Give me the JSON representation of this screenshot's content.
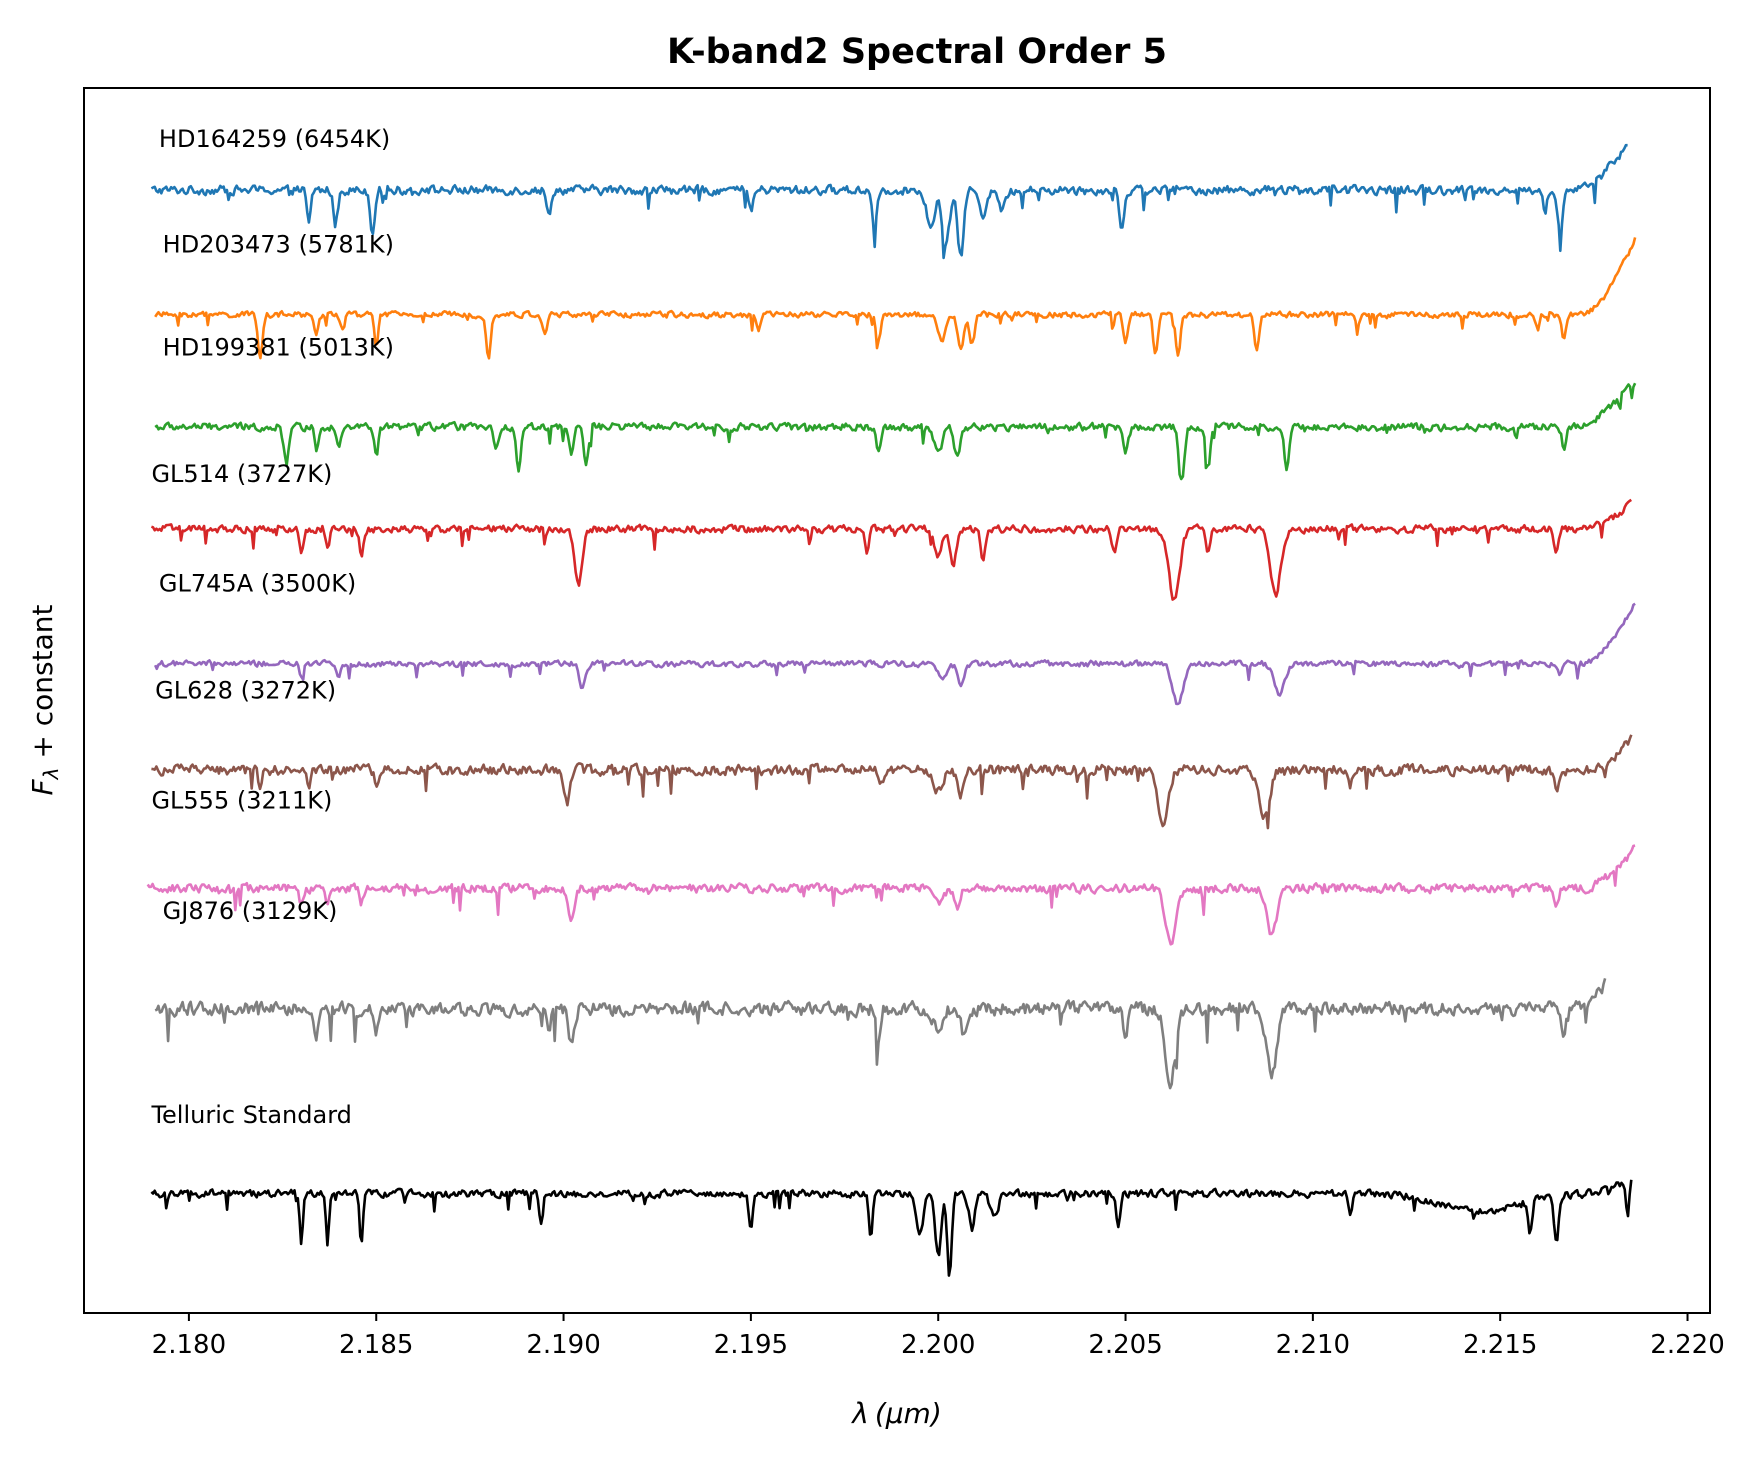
{
  "chart_data": {
    "type": "line",
    "title": "K-band2 Spectral Order 5",
    "xlabel_symbol": "λ",
    "xlabel_unit": "(μm)",
    "ylabel_symbol": "F",
    "ylabel_subscript": "λ",
    "ylabel_rest": " + constant",
    "xlim": [
      2.1772,
      2.2206
    ],
    "ylim": [
      0,
      12
    ],
    "xticks": [
      {
        "value": 2.18,
        "label": "2.180"
      },
      {
        "value": 2.185,
        "label": "2.185"
      },
      {
        "value": 2.19,
        "label": "2.190"
      },
      {
        "value": 2.195,
        "label": "2.195"
      },
      {
        "value": 2.2,
        "label": "2.200"
      },
      {
        "value": 2.205,
        "label": "2.205"
      },
      {
        "value": 2.21,
        "label": "2.210"
      },
      {
        "value": 2.215,
        "label": "2.215"
      },
      {
        "value": 2.22,
        "label": "2.220"
      }
    ],
    "yticks_visible": false,
    "grid": false,
    "series": [
      {
        "name": "HD164259 (6454K)",
        "color": "#1f77b4",
        "x_range": [
          2.179,
          2.2184
        ],
        "offset": 11.0,
        "noise": 0.06,
        "label_x": 2.1792,
        "label_y": 11.42,
        "features": [
          {
            "x": 2.1832,
            "depth": 0.35,
            "width": 5e-05
          },
          {
            "x": 2.1839,
            "depth": 0.35,
            "width": 5e-05
          },
          {
            "x": 2.1849,
            "depth": 0.4,
            "width": 6e-05
          },
          {
            "x": 2.1896,
            "depth": 0.25,
            "width": 6e-05
          },
          {
            "x": 2.195,
            "depth": 0.2,
            "width": 6e-05
          },
          {
            "x": 2.1983,
            "depth": 0.35,
            "width": 6e-05
          },
          {
            "x": 2.1998,
            "depth": 0.4,
            "width": 0.0001
          },
          {
            "x": 2.2002,
            "depth": 0.55,
            "width": 0.0001
          },
          {
            "x": 2.2006,
            "depth": 0.65,
            "width": 8e-05
          },
          {
            "x": 2.2012,
            "depth": 0.25,
            "width": 8e-05
          },
          {
            "x": 2.2017,
            "depth": 0.2,
            "width": 0.0001
          },
          {
            "x": 2.2049,
            "depth": 0.4,
            "width": 6e-05
          },
          {
            "x": 2.2166,
            "depth": 0.45,
            "width": 6e-05
          },
          {
            "x": 2.2162,
            "depth": 0.25,
            "width": 5e-05
          }
        ],
        "tail": {
          "start": 2.217,
          "rise": 0.45
        }
      },
      {
        "name": "HD203473 (5781K)",
        "color": "#ff7f0e",
        "x_range": [
          2.1791,
          2.2186
        ],
        "offset": 9.78,
        "noise": 0.04,
        "label_x": 2.1793,
        "label_y": 10.39,
        "features": [
          {
            "x": 2.1819,
            "depth": 0.4,
            "width": 6e-05
          },
          {
            "x": 2.1834,
            "depth": 0.22,
            "width": 5e-05
          },
          {
            "x": 2.1841,
            "depth": 0.15,
            "width": 5e-05
          },
          {
            "x": 2.185,
            "depth": 0.3,
            "width": 5e-05
          },
          {
            "x": 2.188,
            "depth": 0.4,
            "width": 6e-05
          },
          {
            "x": 2.1895,
            "depth": 0.18,
            "width": 6e-05
          },
          {
            "x": 2.1952,
            "depth": 0.15,
            "width": 6e-05
          },
          {
            "x": 2.1984,
            "depth": 0.25,
            "width": 6e-05
          },
          {
            "x": 2.2001,
            "depth": 0.25,
            "width": 0.0001
          },
          {
            "x": 2.2006,
            "depth": 0.35,
            "width": 8e-05
          },
          {
            "x": 2.2009,
            "depth": 0.3,
            "width": 7e-05
          },
          {
            "x": 2.205,
            "depth": 0.25,
            "width": 6e-05
          },
          {
            "x": 2.2058,
            "depth": 0.4,
            "width": 6e-05
          },
          {
            "x": 2.2064,
            "depth": 0.4,
            "width": 6e-05
          },
          {
            "x": 2.2085,
            "depth": 0.35,
            "width": 6e-05
          },
          {
            "x": 2.2112,
            "depth": 0.1,
            "width": 6e-05
          },
          {
            "x": 2.216,
            "depth": 0.15,
            "width": 5e-05
          },
          {
            "x": 2.2167,
            "depth": 0.25,
            "width": 6e-05
          }
        ],
        "tail": {
          "start": 2.2172,
          "rise": 0.75
        }
      },
      {
        "name": "HD199381 (5013K)",
        "color": "#2ca02c",
        "x_range": [
          2.1791,
          2.2186
        ],
        "offset": 8.68,
        "noise": 0.05,
        "label_x": 2.1793,
        "label_y": 9.38,
        "features": [
          {
            "x": 2.1826,
            "depth": 0.35,
            "width": 6e-05
          },
          {
            "x": 2.1834,
            "depth": 0.22,
            "width": 5e-05
          },
          {
            "x": 2.184,
            "depth": 0.18,
            "width": 5e-05
          },
          {
            "x": 2.185,
            "depth": 0.3,
            "width": 5e-05
          },
          {
            "x": 2.1882,
            "depth": 0.25,
            "width": 6e-05
          },
          {
            "x": 2.1888,
            "depth": 0.4,
            "width": 6e-05
          },
          {
            "x": 2.1902,
            "depth": 0.25,
            "width": 6e-05
          },
          {
            "x": 2.1906,
            "depth": 0.4,
            "width": 6e-05
          },
          {
            "x": 2.1984,
            "depth": 0.22,
            "width": 6e-05
          },
          {
            "x": 2.2,
            "depth": 0.25,
            "width": 0.0001
          },
          {
            "x": 2.2005,
            "depth": 0.3,
            "width": 8e-05
          },
          {
            "x": 2.205,
            "depth": 0.22,
            "width": 6e-05
          },
          {
            "x": 2.2065,
            "depth": 0.55,
            "width": 7e-05
          },
          {
            "x": 2.2072,
            "depth": 0.4,
            "width": 6e-05
          },
          {
            "x": 2.2093,
            "depth": 0.45,
            "width": 6e-05
          },
          {
            "x": 2.2167,
            "depth": 0.2,
            "width": 6e-05
          }
        ],
        "tail": {
          "start": 2.217,
          "rise": 0.45
        }
      },
      {
        "name": "GL514 (3727K)",
        "color": "#d62728",
        "x_range": [
          2.179,
          2.2185
        ],
        "offset": 7.68,
        "noise": 0.05,
        "label_x": 2.179,
        "label_y": 8.14,
        "features": [
          {
            "x": 2.183,
            "depth": 0.25,
            "width": 5e-05
          },
          {
            "x": 2.1837,
            "depth": 0.2,
            "width": 5e-05
          },
          {
            "x": 2.1846,
            "depth": 0.25,
            "width": 5e-05
          },
          {
            "x": 2.1904,
            "depth": 0.55,
            "width": 0.0001
          },
          {
            "x": 2.1981,
            "depth": 0.25,
            "width": 5e-05
          },
          {
            "x": 2.2,
            "depth": 0.25,
            "width": 0.0001
          },
          {
            "x": 2.2004,
            "depth": 0.35,
            "width": 8e-05
          },
          {
            "x": 2.2012,
            "depth": 0.3,
            "width": 6e-05
          },
          {
            "x": 2.2047,
            "depth": 0.2,
            "width": 6e-05
          },
          {
            "x": 2.2063,
            "depth": 0.7,
            "width": 0.00014
          },
          {
            "x": 2.2072,
            "depth": 0.25,
            "width": 6e-05
          },
          {
            "x": 2.209,
            "depth": 0.65,
            "width": 0.00014
          },
          {
            "x": 2.2165,
            "depth": 0.25,
            "width": 6e-05
          }
        ],
        "tail": {
          "start": 2.2172,
          "rise": 0.25
        }
      },
      {
        "name": "GL745A (3500K)",
        "color": "#9467bd",
        "x_range": [
          2.1791,
          2.2186
        ],
        "offset": 6.36,
        "noise": 0.04,
        "label_x": 2.1792,
        "label_y": 7.07,
        "features": [
          {
            "x": 2.183,
            "depth": 0.12,
            "width": 5e-05
          },
          {
            "x": 2.184,
            "depth": 0.12,
            "width": 5e-05
          },
          {
            "x": 2.1905,
            "depth": 0.25,
            "width": 8e-05
          },
          {
            "x": 2.2001,
            "depth": 0.15,
            "width": 0.00012
          },
          {
            "x": 2.2006,
            "depth": 0.2,
            "width": 8e-05
          },
          {
            "x": 2.2064,
            "depth": 0.4,
            "width": 0.00014
          },
          {
            "x": 2.2091,
            "depth": 0.3,
            "width": 0.00014
          },
          {
            "x": 2.2166,
            "depth": 0.12,
            "width": 6e-05
          }
        ],
        "tail": {
          "start": 2.2172,
          "rise": 0.6
        }
      },
      {
        "name": "GL628 (3272K)",
        "color": "#8c564b",
        "x_range": [
          2.179,
          2.2185
        ],
        "offset": 5.32,
        "noise": 0.07,
        "label_x": 2.1791,
        "label_y": 6.02,
        "features": [
          {
            "x": 2.1819,
            "depth": 0.15,
            "width": 5e-05
          },
          {
            "x": 2.1832,
            "depth": 0.2,
            "width": 5e-05
          },
          {
            "x": 2.185,
            "depth": 0.15,
            "width": 5e-05
          },
          {
            "x": 2.1901,
            "depth": 0.3,
            "width": 8e-05
          },
          {
            "x": 2.1985,
            "depth": 0.15,
            "width": 6e-05
          },
          {
            "x": 2.2,
            "depth": 0.2,
            "width": 0.00012
          },
          {
            "x": 2.2006,
            "depth": 0.25,
            "width": 8e-05
          },
          {
            "x": 2.206,
            "depth": 0.55,
            "width": 0.00014
          },
          {
            "x": 2.2087,
            "depth": 0.45,
            "width": 0.00014
          },
          {
            "x": 2.211,
            "depth": 0.15,
            "width": 6e-05
          },
          {
            "x": 2.2165,
            "depth": 0.2,
            "width": 6e-05
          }
        ],
        "tail": {
          "start": 2.2175,
          "rise": 0.3
        }
      },
      {
        "name": "GL555 (3211K)",
        "color": "#e377c2",
        "x_range": [
          2.1789,
          2.2186
        ],
        "offset": 4.16,
        "noise": 0.06,
        "label_x": 2.179,
        "label_y": 4.94,
        "features": [
          {
            "x": 2.183,
            "depth": 0.15,
            "width": 5e-05
          },
          {
            "x": 2.1837,
            "depth": 0.15,
            "width": 5e-05
          },
          {
            "x": 2.1846,
            "depth": 0.15,
            "width": 5e-05
          },
          {
            "x": 2.1902,
            "depth": 0.3,
            "width": 8e-05
          },
          {
            "x": 2.2,
            "depth": 0.15,
            "width": 0.00012
          },
          {
            "x": 2.2005,
            "depth": 0.2,
            "width": 8e-05
          },
          {
            "x": 2.2062,
            "depth": 0.55,
            "width": 0.00014
          },
          {
            "x": 2.2089,
            "depth": 0.45,
            "width": 0.00014
          },
          {
            "x": 2.2165,
            "depth": 0.15,
            "width": 6e-05
          }
        ],
        "tail": {
          "start": 2.2172,
          "rise": 0.4
        }
      },
      {
        "name": "GJ876 (3129K)",
        "color": "#7f7f7f",
        "x_range": [
          2.1791,
          2.2178
        ],
        "offset": 2.98,
        "noise": 0.09,
        "label_x": 2.1793,
        "label_y": 3.86,
        "features": [
          {
            "x": 2.1834,
            "depth": 0.25,
            "width": 5e-05
          },
          {
            "x": 2.185,
            "depth": 0.25,
            "width": 5e-05
          },
          {
            "x": 2.1896,
            "depth": 0.2,
            "width": 5e-05
          },
          {
            "x": 2.1902,
            "depth": 0.3,
            "width": 8e-05
          },
          {
            "x": 2.1984,
            "depth": 0.3,
            "width": 6e-05
          },
          {
            "x": 2.2,
            "depth": 0.2,
            "width": 0.00012
          },
          {
            "x": 2.2007,
            "depth": 0.3,
            "width": 8e-05
          },
          {
            "x": 2.205,
            "depth": 0.25,
            "width": 6e-05
          },
          {
            "x": 2.2062,
            "depth": 0.7,
            "width": 0.00014
          },
          {
            "x": 2.2089,
            "depth": 0.65,
            "width": 0.00014
          },
          {
            "x": 2.2167,
            "depth": 0.25,
            "width": 6e-05
          }
        ],
        "tail": {
          "start": 2.2168,
          "rise": 0.25
        }
      },
      {
        "name": "Telluric Standard",
        "color": "#000000",
        "x_range": [
          2.179,
          2.2185
        ],
        "offset": 1.17,
        "noise": 0.05,
        "label_x": 2.179,
        "label_y": 1.86,
        "features": [
          {
            "x": 2.183,
            "depth": 0.5,
            "width": 4e-05
          },
          {
            "x": 2.1837,
            "depth": 0.5,
            "width": 4e-05
          },
          {
            "x": 2.1846,
            "depth": 0.55,
            "width": 4e-05
          },
          {
            "x": 2.1894,
            "depth": 0.3,
            "width": 5e-05
          },
          {
            "x": 2.195,
            "depth": 0.35,
            "width": 5e-05
          },
          {
            "x": 2.1982,
            "depth": 0.45,
            "width": 5e-05
          },
          {
            "x": 2.1995,
            "depth": 0.4,
            "width": 0.0001
          },
          {
            "x": 2.2,
            "depth": 0.6,
            "width": 8e-05
          },
          {
            "x": 2.2003,
            "depth": 0.8,
            "width": 6e-05
          },
          {
            "x": 2.2009,
            "depth": 0.35,
            "width": 8e-05
          },
          {
            "x": 2.2015,
            "depth": 0.25,
            "width": 0.0001
          },
          {
            "x": 2.2048,
            "depth": 0.35,
            "width": 5e-05
          },
          {
            "x": 2.211,
            "depth": 0.25,
            "width": 5e-05
          },
          {
            "x": 2.2158,
            "depth": 0.3,
            "width": 5e-05
          },
          {
            "x": 2.2165,
            "depth": 0.45,
            "width": 6e-05
          },
          {
            "x": 2.2184,
            "depth": 0.35,
            "width": 4e-05
          }
        ],
        "broad": [
          {
            "x": 2.2145,
            "depth": 0.18,
            "width": 0.001
          }
        ],
        "tail": {
          "start": 2.2172,
          "rise": 0.15
        }
      }
    ]
  }
}
